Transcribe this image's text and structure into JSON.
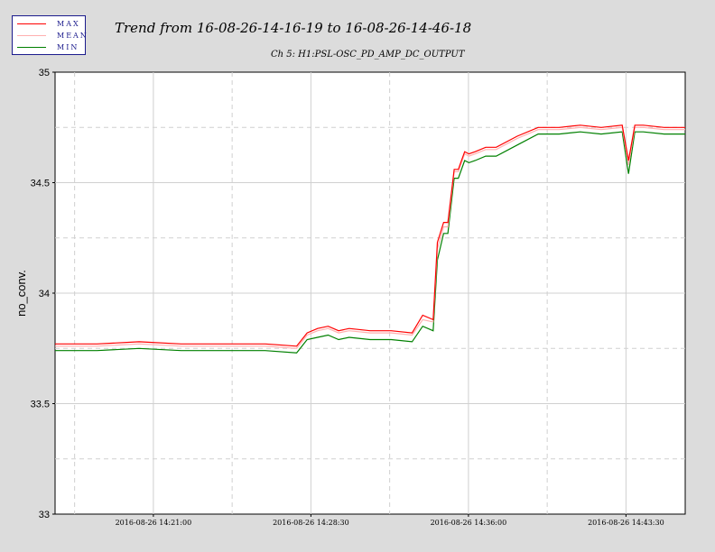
{
  "chart_data": {
    "type": "line",
    "title": "Trend from 16-08-26-14-16-19 to 16-08-26-14-46-18",
    "subtitle": "Ch 5: H1:PSL-OSC_PD_AMP_DC_OUTPUT",
    "xlabel": "",
    "ylabel": "no_conv.",
    "ylim": [
      33,
      35
    ],
    "y_ticks": [
      "33",
      "33.5",
      "34",
      "34.5",
      "35"
    ],
    "x_ticks": [
      "2016-08-26 14:21:00",
      "2016-08-26 14:28:30",
      "2016-08-26 14:36:00",
      "2016-08-26 14:43:30"
    ],
    "x_tick_minutes": [
      4.68,
      12.18,
      19.68,
      27.18
    ],
    "xlim_minutes": [
      0,
      30
    ],
    "grid": true,
    "legend_placement": "top-left",
    "series": [
      {
        "name": "MAX",
        "color": "#ff0000",
        "x": [
          0,
          2,
          4,
          6,
          8,
          10,
          11.5,
          12,
          12.5,
          13,
          13.5,
          14,
          15,
          16,
          17,
          17.5,
          18,
          18.2,
          18.5,
          18.7,
          19,
          19.2,
          19.5,
          19.7,
          20,
          20.5,
          21,
          22,
          23,
          24,
          25,
          26,
          27,
          27.3,
          27.6,
          28,
          29,
          30
        ],
        "values": [
          33.77,
          33.77,
          33.78,
          33.77,
          33.77,
          33.77,
          33.76,
          33.82,
          33.84,
          33.85,
          33.83,
          33.84,
          33.83,
          33.83,
          33.82,
          33.9,
          33.88,
          34.23,
          34.32,
          34.32,
          34.56,
          34.56,
          34.64,
          34.63,
          34.64,
          34.66,
          34.66,
          34.71,
          34.75,
          34.75,
          34.76,
          34.75,
          34.76,
          34.6,
          34.76,
          34.76,
          34.75,
          34.75
        ]
      },
      {
        "name": "MEAN",
        "color": "#ffb0b0",
        "x": [
          0,
          2,
          4,
          6,
          8,
          10,
          11.5,
          12,
          12.5,
          13,
          13.5,
          14,
          15,
          16,
          17,
          17.5,
          18,
          18.2,
          18.5,
          18.7,
          19,
          19.2,
          19.5,
          19.7,
          20,
          20.5,
          21,
          22,
          23,
          24,
          25,
          26,
          27,
          27.3,
          27.6,
          28,
          29,
          30
        ],
        "values": [
          33.76,
          33.76,
          33.77,
          33.76,
          33.76,
          33.76,
          33.75,
          33.81,
          33.83,
          33.84,
          33.82,
          33.83,
          33.82,
          33.82,
          33.81,
          33.88,
          33.87,
          34.2,
          34.3,
          34.3,
          34.55,
          34.55,
          34.63,
          34.62,
          34.63,
          34.65,
          34.65,
          34.7,
          34.74,
          34.74,
          34.75,
          34.74,
          34.75,
          34.58,
          34.75,
          34.75,
          34.74,
          34.74
        ]
      },
      {
        "name": "MIN",
        "color": "#008000",
        "x": [
          0,
          2,
          4,
          6,
          8,
          10,
          11.5,
          12,
          12.5,
          13,
          13.5,
          14,
          15,
          16,
          17,
          17.5,
          18,
          18.2,
          18.5,
          18.7,
          19,
          19.2,
          19.5,
          19.7,
          20,
          20.5,
          21,
          22,
          23,
          24,
          25,
          26,
          27,
          27.3,
          27.6,
          28,
          29,
          30
        ],
        "values": [
          33.74,
          33.74,
          33.75,
          33.74,
          33.74,
          33.74,
          33.73,
          33.79,
          33.8,
          33.81,
          33.79,
          33.8,
          33.79,
          33.79,
          33.78,
          33.85,
          33.83,
          34.15,
          34.27,
          34.27,
          34.52,
          34.52,
          34.6,
          34.59,
          34.6,
          34.62,
          34.62,
          34.67,
          34.72,
          34.72,
          34.73,
          34.72,
          34.73,
          34.54,
          34.73,
          34.73,
          34.72,
          34.72
        ]
      }
    ]
  }
}
